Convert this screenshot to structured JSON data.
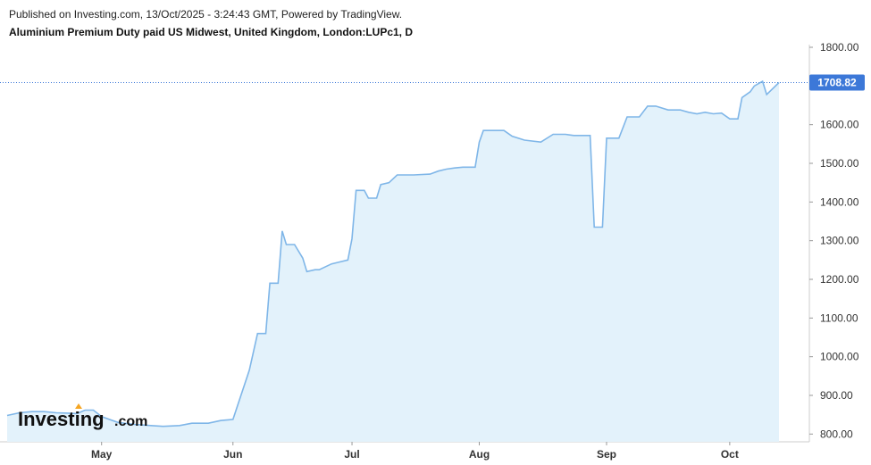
{
  "header": {
    "published": "Published on Investing.com, 13/Oct/2025 - 3:24:43 GMT, Powered by TradingView.",
    "title": "Aluminium Premium Duty paid US Midwest, United Kingdom, London:LUPc1, D"
  },
  "logo": {
    "text": "Investing",
    "suffix": ".com"
  },
  "colors": {
    "line": "#7fb6e8",
    "fill": "#e3f2fb",
    "lastBadge": "#3c78d8",
    "axis": "#cccccc"
  },
  "chart_data": {
    "type": "area",
    "ylim": [
      780,
      1830
    ],
    "yticks": [
      800,
      900,
      1000,
      1100,
      1200,
      1300,
      1400,
      1500,
      1600,
      1700,
      1800
    ],
    "ytick_labels": [
      "800.00",
      "900.00",
      "1000.00",
      "1100.00",
      "1200.00",
      "1300.00",
      "1400.00",
      "1500.00",
      "1600.00",
      "1700.00",
      "1800.00"
    ],
    "xticks": [
      {
        "label": "May",
        "date": "2025-05-01"
      },
      {
        "label": "Jun",
        "date": "2025-06-02"
      },
      {
        "label": "Jul",
        "date": "2025-07-01"
      },
      {
        "label": "Aug",
        "date": "2025-08-01"
      },
      {
        "label": "Sep",
        "date": "2025-09-01"
      },
      {
        "label": "Oct",
        "date": "2025-10-01"
      }
    ],
    "last_value": 1708.82,
    "last_label": "1708.82",
    "points": [
      [
        "2025-04-08",
        848
      ],
      [
        "2025-04-11",
        855
      ],
      [
        "2025-04-14",
        858
      ],
      [
        "2025-04-17",
        858
      ],
      [
        "2025-04-20",
        855
      ],
      [
        "2025-04-23",
        854
      ],
      [
        "2025-04-25",
        853
      ],
      [
        "2025-04-27",
        862
      ],
      [
        "2025-04-29",
        862
      ],
      [
        "2025-05-01",
        845
      ],
      [
        "2025-05-05",
        830
      ],
      [
        "2025-05-09",
        825
      ],
      [
        "2025-05-13",
        822
      ],
      [
        "2025-05-16",
        820
      ],
      [
        "2025-05-20",
        822
      ],
      [
        "2025-05-23",
        828
      ],
      [
        "2025-05-27",
        828
      ],
      [
        "2025-05-30",
        835
      ],
      [
        "2025-06-02",
        838
      ],
      [
        "2025-06-06",
        965
      ],
      [
        "2025-06-08",
        1060
      ],
      [
        "2025-06-09",
        1060
      ],
      [
        "2025-06-10",
        1060
      ],
      [
        "2025-06-11",
        1190
      ],
      [
        "2025-06-12",
        1190
      ],
      [
        "2025-06-13",
        1190
      ],
      [
        "2025-06-14",
        1325
      ],
      [
        "2025-06-15",
        1290
      ],
      [
        "2025-06-17",
        1290
      ],
      [
        "2025-06-19",
        1255
      ],
      [
        "2025-06-20",
        1220
      ],
      [
        "2025-06-22",
        1225
      ],
      [
        "2025-06-23",
        1225
      ],
      [
        "2025-06-26",
        1240
      ],
      [
        "2025-06-28",
        1245
      ],
      [
        "2025-06-30",
        1250
      ],
      [
        "2025-07-01",
        1305
      ],
      [
        "2025-07-02",
        1430
      ],
      [
        "2025-07-04",
        1430
      ],
      [
        "2025-07-05",
        1410
      ],
      [
        "2025-07-07",
        1410
      ],
      [
        "2025-07-08",
        1445
      ],
      [
        "2025-07-10",
        1450
      ],
      [
        "2025-07-12",
        1470
      ],
      [
        "2025-07-16",
        1470
      ],
      [
        "2025-07-20",
        1472
      ],
      [
        "2025-07-22",
        1480
      ],
      [
        "2025-07-24",
        1485
      ],
      [
        "2025-07-26",
        1488
      ],
      [
        "2025-07-28",
        1490
      ],
      [
        "2025-07-31",
        1490
      ],
      [
        "2025-08-01",
        1555
      ],
      [
        "2025-08-02",
        1585
      ],
      [
        "2025-08-07",
        1585
      ],
      [
        "2025-08-09",
        1570
      ],
      [
        "2025-08-12",
        1560
      ],
      [
        "2025-08-16",
        1555
      ],
      [
        "2025-08-19",
        1575
      ],
      [
        "2025-08-22",
        1575
      ],
      [
        "2025-08-24",
        1572
      ],
      [
        "2025-08-28",
        1572
      ],
      [
        "2025-08-29",
        1335
      ],
      [
        "2025-08-31",
        1335
      ],
      [
        "2025-09-01",
        1565
      ],
      [
        "2025-09-04",
        1565
      ],
      [
        "2025-09-06",
        1620
      ],
      [
        "2025-09-09",
        1620
      ],
      [
        "2025-09-11",
        1648
      ],
      [
        "2025-09-13",
        1648
      ],
      [
        "2025-09-16",
        1638
      ],
      [
        "2025-09-19",
        1638
      ],
      [
        "2025-09-21",
        1632
      ],
      [
        "2025-09-23",
        1628
      ],
      [
        "2025-09-25",
        1632
      ],
      [
        "2025-09-27",
        1628
      ],
      [
        "2025-09-29",
        1630
      ],
      [
        "2025-10-01",
        1615
      ],
      [
        "2025-10-03",
        1615
      ],
      [
        "2025-10-04",
        1670
      ],
      [
        "2025-10-06",
        1685
      ],
      [
        "2025-10-07",
        1700
      ],
      [
        "2025-10-09",
        1712
      ],
      [
        "2025-10-10",
        1678
      ],
      [
        "2025-10-13",
        1708.82
      ]
    ]
  }
}
